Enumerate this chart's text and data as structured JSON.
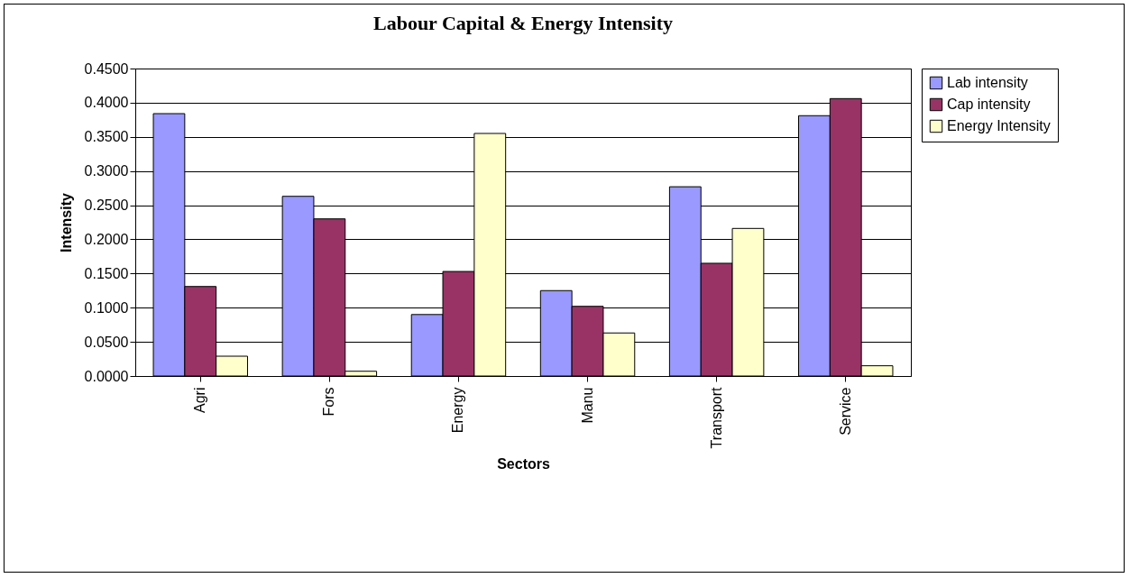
{
  "chart_data": {
    "type": "bar",
    "title": "Labour Capital & Energy Intensity",
    "xlabel": "Sectors",
    "ylabel": "Intensity",
    "categories": [
      "Agri",
      "Fors",
      "Energy",
      "Manu",
      "Transport",
      "Service"
    ],
    "series": [
      {
        "name": "Lab intensity",
        "color": "#9999ff",
        "values": [
          0.384,
          0.263,
          0.09,
          0.125,
          0.277,
          0.381
        ]
      },
      {
        "name": "Cap intensity",
        "color": "#993366",
        "values": [
          0.131,
          0.23,
          0.153,
          0.102,
          0.165,
          0.406
        ]
      },
      {
        "name": "Energy Intensity",
        "color": "#ffffcc",
        "values": [
          0.029,
          0.007,
          0.355,
          0.063,
          0.216,
          0.015
        ]
      }
    ],
    "ylim": [
      0,
      0.45
    ],
    "yticks": [
      {
        "value": 0,
        "label": "0.0000"
      },
      {
        "value": 0.05,
        "label": "0.0500"
      },
      {
        "value": 0.1,
        "label": "0.1000"
      },
      {
        "value": 0.15,
        "label": "0.1500"
      },
      {
        "value": 0.2,
        "label": "0.2000"
      },
      {
        "value": 0.25,
        "label": "0.2500"
      },
      {
        "value": 0.3,
        "label": "0.3000"
      },
      {
        "value": 0.35,
        "label": "0.3500"
      },
      {
        "value": 0.4,
        "label": "0.4000"
      },
      {
        "value": 0.45,
        "label": "0.4500"
      }
    ],
    "grid": "y",
    "legend": "right"
  }
}
